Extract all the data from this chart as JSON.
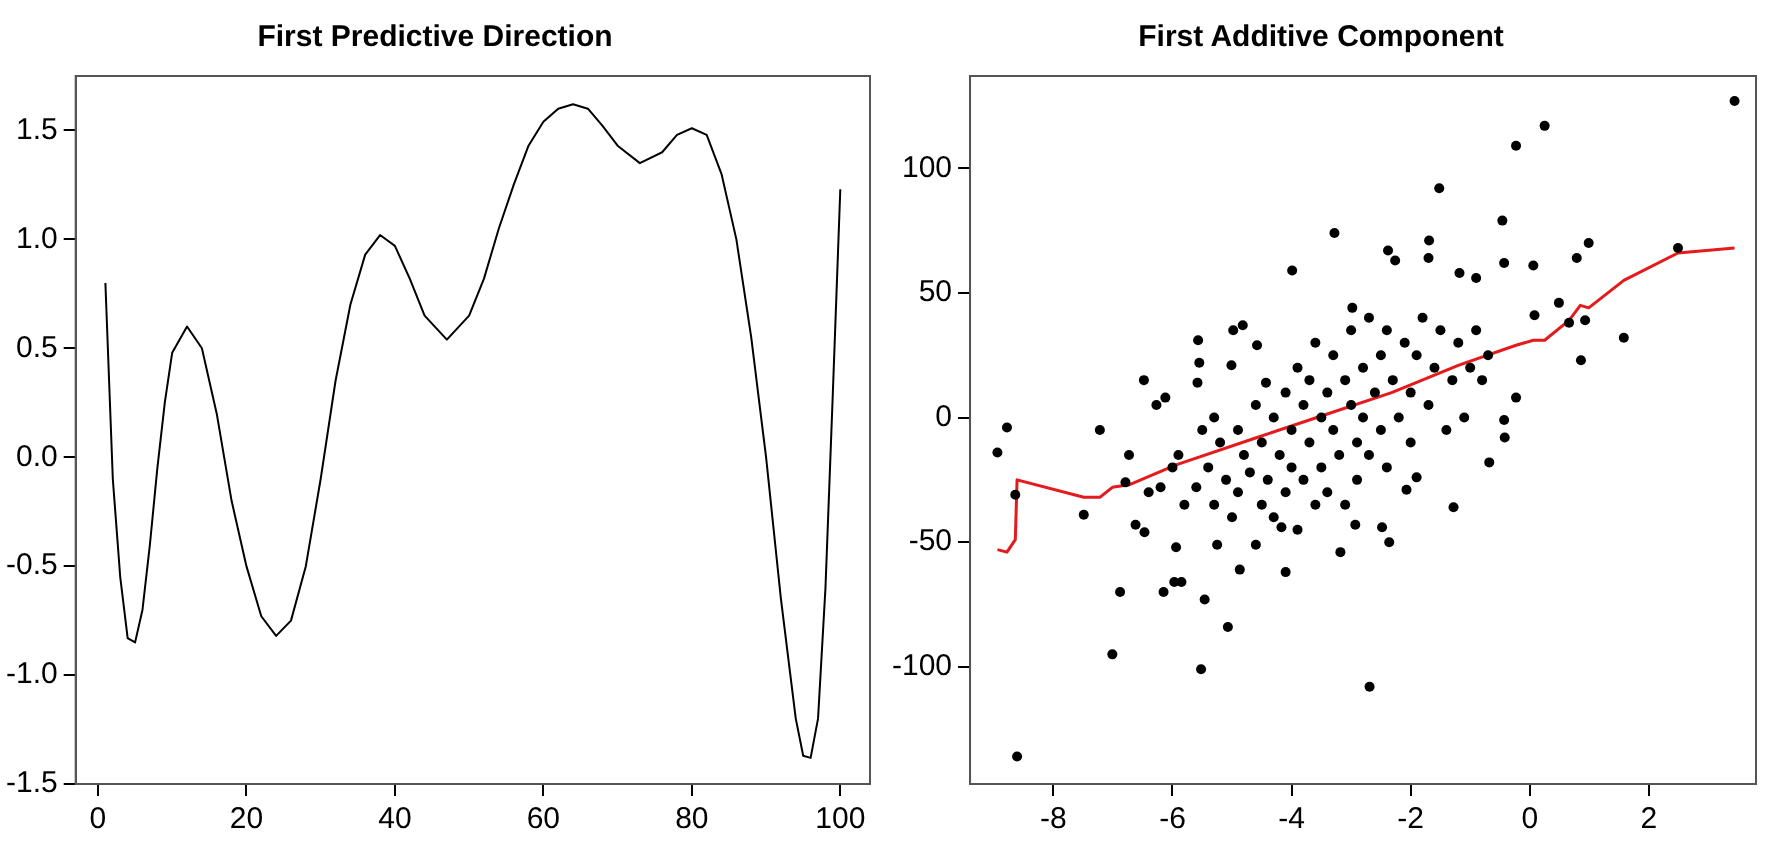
{
  "chart_data": [
    {
      "type": "line",
      "title": "First Predictive Direction",
      "xlim": [
        -3,
        104
      ],
      "ylim": [
        -1.5,
        1.75
      ],
      "xticks": [
        0,
        20,
        40,
        60,
        80,
        100
      ],
      "yticks": [
        {
          "value": -1.5,
          "label": "-1.5"
        },
        {
          "value": -1.0,
          "label": "-1.0"
        },
        {
          "value": -0.5,
          "label": "-0.5"
        },
        {
          "value": 0,
          "label": "0.0"
        },
        {
          "value": 0.5,
          "label": "0.5"
        },
        {
          "value": 1.0,
          "label": "1.0"
        },
        {
          "value": 1.5,
          "label": "1.5"
        }
      ],
      "grid": false,
      "legend": false,
      "series": [
        {
          "color": "#000000",
          "marker": "none",
          "x": [
            1,
            2,
            3,
            4,
            5,
            6,
            7,
            8,
            9,
            10,
            12,
            14,
            16,
            18,
            20,
            22,
            24,
            26,
            28,
            30,
            32,
            34,
            36,
            38,
            40,
            42,
            44,
            47,
            50,
            52,
            54,
            56,
            58,
            60,
            62,
            64,
            66,
            68,
            70,
            73,
            76,
            78,
            80,
            82,
            84,
            86,
            88,
            90,
            92,
            94,
            95,
            96,
            97,
            98,
            99,
            100
          ],
          "values": [
            0.8,
            -0.1,
            -0.55,
            -0.83,
            -0.85,
            -0.7,
            -0.4,
            -0.05,
            0.25,
            0.48,
            0.6,
            0.5,
            0.2,
            -0.2,
            -0.5,
            -0.73,
            -0.82,
            -0.75,
            -0.5,
            -0.1,
            0.35,
            0.7,
            0.93,
            1.02,
            0.97,
            0.82,
            0.65,
            0.54,
            0.65,
            0.82,
            1.05,
            1.25,
            1.43,
            1.54,
            1.6,
            1.62,
            1.6,
            1.52,
            1.43,
            1.35,
            1.4,
            1.48,
            1.51,
            1.48,
            1.3,
            1.0,
            0.55,
            0.0,
            -0.65,
            -1.2,
            -1.37,
            -1.38,
            -1.2,
            -0.6,
            0.3,
            1.23
          ]
        }
      ]
    },
    {
      "type": "scatter",
      "title": "First Additive Component",
      "xlim": [
        -9.4,
        3.8
      ],
      "ylim": [
        -147,
        137
      ],
      "xticks": [
        -8,
        -6,
        -4,
        -2,
        0,
        2
      ],
      "yticks": [
        -100,
        -50,
        0,
        50,
        100
      ],
      "grid": false,
      "legend": false,
      "series": [
        {
          "color": "#000000",
          "marker": "circle",
          "x": [
            -8.94,
            -8.78,
            -8.64,
            -8.61,
            -7.22,
            -7.49,
            -6.88,
            -7.01,
            -6.73,
            -6.79,
            -6.62,
            -6.48,
            -6.47,
            -6.27,
            -6.12,
            -6.15,
            -5.97,
            -5.85,
            -5.94,
            -5.57,
            -5.55,
            -5.58,
            -5.46,
            -5.52,
            -5.07,
            -5.25,
            -4.98,
            -4.82,
            -5.01,
            -4.87,
            -4.58,
            -4.6,
            -4.43,
            -4.1,
            -3.99,
            -4.17,
            -3.28,
            -3.18,
            -2.69,
            -2.93,
            -2.98,
            -2.38,
            -2.26,
            -2.36,
            -2.48,
            -2.07,
            -1.9,
            -1.69,
            -1.52,
            -1.7,
            -1.28,
            -1.18,
            -0.9,
            -0.68,
            -0.46,
            -0.43,
            -0.42,
            -0.43,
            -0.23,
            -0.23,
            0.25,
            0.06,
            0.08,
            0.49,
            0.79,
            0.99,
            0.93,
            0.86,
            1.58,
            2.49,
            3.44,
            0.66,
            -5.6,
            -5.4,
            -5.3,
            -5.2,
            -5.1,
            -5.0,
            -4.9,
            -4.9,
            -4.8,
            -4.7,
            -4.6,
            -4.5,
            -4.5,
            -4.4,
            -4.3,
            -4.3,
            -4.2,
            -4.1,
            -4.1,
            -4.0,
            -4.0,
            -3.9,
            -3.9,
            -3.8,
            -3.8,
            -3.7,
            -3.7,
            -3.6,
            -3.6,
            -3.5,
            -3.5,
            -3.4,
            -3.4,
            -3.3,
            -3.3,
            -3.2,
            -3.1,
            -3.1,
            -3.0,
            -3.0,
            -2.9,
            -2.9,
            -2.8,
            -2.8,
            -2.7,
            -2.7,
            -2.6,
            -2.5,
            -2.5,
            -2.4,
            -2.4,
            -2.3,
            -2.2,
            -2.1,
            -2.0,
            -2.0,
            -1.9,
            -1.8,
            -1.7,
            -1.6,
            -1.5,
            -1.4,
            -1.3,
            -1.2,
            -1.1,
            -1.0,
            -0.9,
            -0.8,
            -0.7,
            -6.0,
            -6.2,
            -5.8,
            -5.9,
            -6.4,
            -5.5,
            -5.3
          ],
          "values": [
            -14,
            -4,
            -31,
            -136,
            -5,
            -39,
            -70,
            -95,
            -15,
            -26,
            -43,
            15,
            -46,
            5,
            8,
            -70,
            -66,
            -66,
            -52,
            31,
            22,
            14,
            -73,
            -101,
            -84,
            -51,
            35,
            37,
            21,
            -61,
            29,
            -51,
            14,
            -62,
            59,
            -44,
            74,
            -54,
            -108,
            -43,
            44,
            67,
            63,
            -50,
            -44,
            -29,
            -24,
            71,
            92,
            64,
            -36,
            58,
            56,
            -18,
            79,
            62,
            -8,
            -1,
            109,
            8,
            117,
            61,
            41,
            46,
            64,
            70,
            39,
            23,
            32,
            68,
            127,
            38,
            -28,
            -20,
            -35,
            -10,
            -25,
            -40,
            -5,
            -30,
            -15,
            -22,
            5,
            -35,
            -10,
            -25,
            0,
            -40,
            -15,
            10,
            -30,
            -5,
            -20,
            20,
            -45,
            5,
            -25,
            15,
            -10,
            -35,
            30,
            0,
            -20,
            10,
            -30,
            25,
            -5,
            -15,
            15,
            -35,
            5,
            35,
            -10,
            -25,
            20,
            0,
            40,
            -15,
            10,
            25,
            -5,
            35,
            -20,
            15,
            0,
            30,
            10,
            -10,
            25,
            40,
            5,
            20,
            35,
            -5,
            15,
            30,
            0,
            20,
            35,
            15,
            25,
            -20,
            -28,
            -35,
            -15,
            -30,
            -5,
            0
          ]
        },
        {
          "type": "line",
          "color": "#e41a1c",
          "marker": "none",
          "x": [
            -8.94,
            -8.78,
            -8.64,
            -8.61,
            -7.49,
            -7.22,
            -7.01,
            -6.73,
            -5.94,
            -4.58,
            -3.45,
            -2.32,
            -1.19,
            -0.23,
            0.06,
            0.25,
            0.66,
            0.85,
            0.99,
            1.58,
            2.49,
            3.44
          ],
          "values": [
            -53,
            -54,
            -49,
            -25,
            -32,
            -32,
            -28,
            -27,
            -19,
            -8,
            1,
            10,
            21,
            29,
            31,
            31,
            39,
            45,
            44,
            55,
            66,
            68
          ]
        }
      ]
    }
  ]
}
